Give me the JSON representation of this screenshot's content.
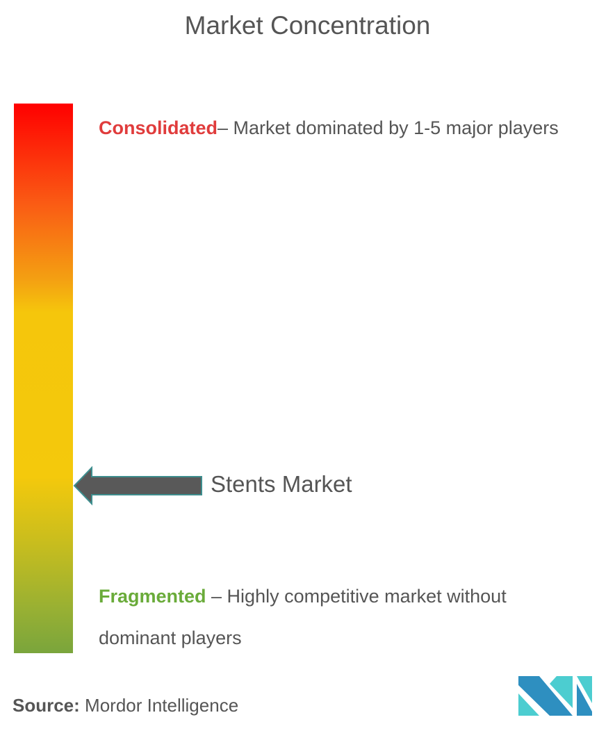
{
  "title": "Market Concentration",
  "scale": {
    "top_color": "#ff0000",
    "bottom_color": "#7aa53c"
  },
  "consolidated": {
    "keyword": "Consolidated",
    "description": "– Market dominated by 1-5 major players",
    "color": "#e03c3c"
  },
  "fragmented": {
    "keyword": "Fragmented",
    "description": " – Highly competitive market without dominant players",
    "color": "#6aab3a"
  },
  "marker": {
    "label": "Stents Market",
    "icon": "left-arrow-icon",
    "arrow_color": "#595959"
  },
  "source": {
    "label": "Source:",
    "value": " Mordor Intelligence"
  },
  "logo": {
    "icon": "mordor-intelligence-logo",
    "colors": [
      "#2e8fc0",
      "#4ccdd0"
    ]
  }
}
